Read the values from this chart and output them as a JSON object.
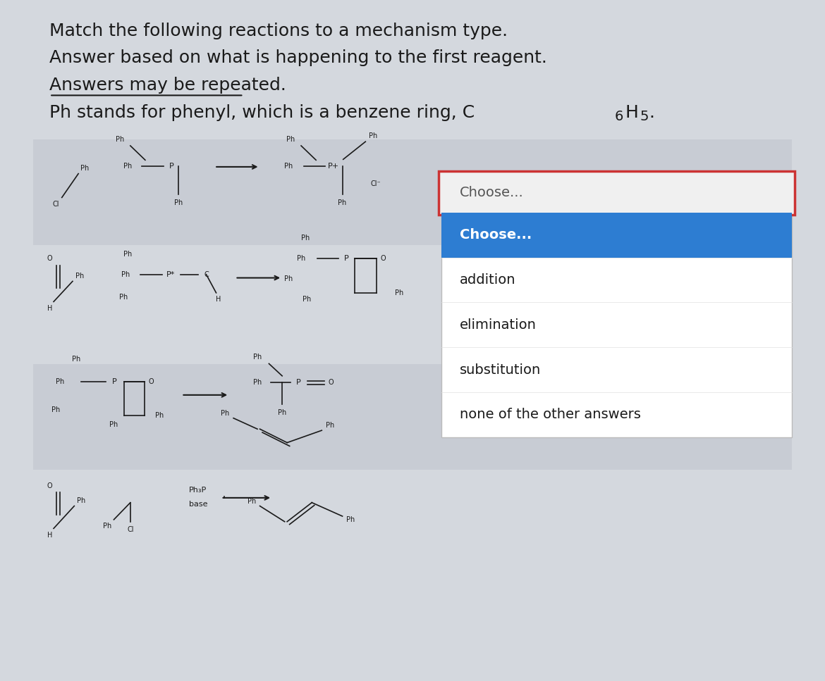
{
  "background_color": "#d4d8de",
  "title_lines": [
    "Match the following reactions to a mechanism type.",
    "Answer based on what is happening to the first reagent.",
    "Answers may be repeated.",
    "Ph stands for phenyl, which is a benzene ring, C₆H₅."
  ],
  "title_underline": [
    false,
    false,
    true,
    false
  ],
  "dropdown_label": "Choose...",
  "dropdown_border_color": "#cc3333",
  "dropdown_highlight_color": "#2d7dd2",
  "dropdown_options": [
    "Choose...",
    "addition",
    "elimination",
    "substitution",
    "none of the other answers"
  ],
  "text_color": "#1a1a1a",
  "row_colors": [
    "#c8ccd4",
    "#d4d8de",
    "#c8ccd4",
    "#d4d8de"
  ]
}
